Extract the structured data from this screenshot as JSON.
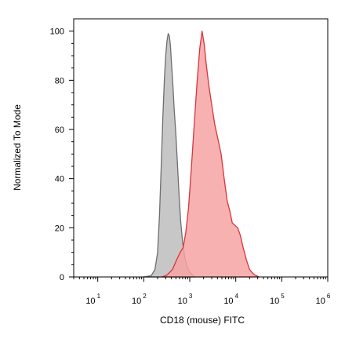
{
  "chart_data": {
    "type": "area",
    "title": "",
    "xlabel": "CD18 (mouse) FITC",
    "ylabel": "Normalized To Mode",
    "xscale": "log",
    "xlim": [
      3,
      1000000
    ],
    "ylim": [
      0,
      105
    ],
    "grid": false,
    "legend": "none",
    "x_ticks": [
      {
        "base": "10",
        "exp": "1",
        "value": 10
      },
      {
        "base": "10",
        "exp": "2",
        "value": 100
      },
      {
        "base": "10",
        "exp": "3",
        "value": 1000
      },
      {
        "base": "10",
        "exp": "4",
        "value": 10000
      },
      {
        "base": "10",
        "exp": "5",
        "value": 100000
      },
      {
        "base": "10",
        "exp": "6",
        "value": 1000000
      }
    ],
    "y_ticks": [
      {
        "label": "0",
        "value": 0
      },
      {
        "label": "20",
        "value": 20
      },
      {
        "label": "40",
        "value": 40
      },
      {
        "label": "60",
        "value": 60
      },
      {
        "label": "80",
        "value": 80
      },
      {
        "label": "100",
        "value": 100
      }
    ],
    "series": [
      {
        "fill": "#bdbdbd",
        "stroke": "#6e6e6e",
        "points": [
          [
            100,
            0
          ],
          [
            145,
            0.5
          ],
          [
            175,
            3
          ],
          [
            200,
            10
          ],
          [
            220,
            25
          ],
          [
            240,
            45
          ],
          [
            260,
            65
          ],
          [
            280,
            80
          ],
          [
            300,
            90
          ],
          [
            320,
            96
          ],
          [
            340,
            99
          ],
          [
            360,
            98
          ],
          [
            380,
            94
          ],
          [
            400,
            87
          ],
          [
            430,
            78
          ],
          [
            460,
            68
          ],
          [
            500,
            58
          ],
          [
            540,
            46
          ],
          [
            590,
            32
          ],
          [
            640,
            22
          ],
          [
            700,
            14
          ],
          [
            780,
            8
          ],
          [
            880,
            4
          ],
          [
            1000,
            2
          ],
          [
            1150,
            0.8
          ],
          [
            1300,
            0
          ]
        ]
      },
      {
        "fill": "#f7a3a3",
        "stroke": "#d9343a",
        "points": [
          [
            250,
            0
          ],
          [
            320,
            0.8
          ],
          [
            420,
            3
          ],
          [
            520,
            7
          ],
          [
            620,
            10
          ],
          [
            720,
            12
          ],
          [
            820,
            18
          ],
          [
            940,
            28
          ],
          [
            1080,
            44
          ],
          [
            1250,
            62
          ],
          [
            1450,
            80
          ],
          [
            1650,
            93
          ],
          [
            1850,
            100
          ],
          [
            2050,
            95
          ],
          [
            2300,
            86
          ],
          [
            2600,
            78
          ],
          [
            3000,
            70
          ],
          [
            3500,
            62
          ],
          [
            4100,
            56
          ],
          [
            4800,
            50
          ],
          [
            5600,
            40
          ],
          [
            6500,
            31
          ],
          [
            7400,
            27
          ],
          [
            8400,
            22
          ],
          [
            9600,
            21
          ],
          [
            11000,
            20
          ],
          [
            12500,
            17
          ],
          [
            14500,
            12
          ],
          [
            17000,
            7
          ],
          [
            20000,
            3
          ],
          [
            25000,
            1
          ],
          [
            32000,
            0
          ]
        ]
      }
    ]
  }
}
